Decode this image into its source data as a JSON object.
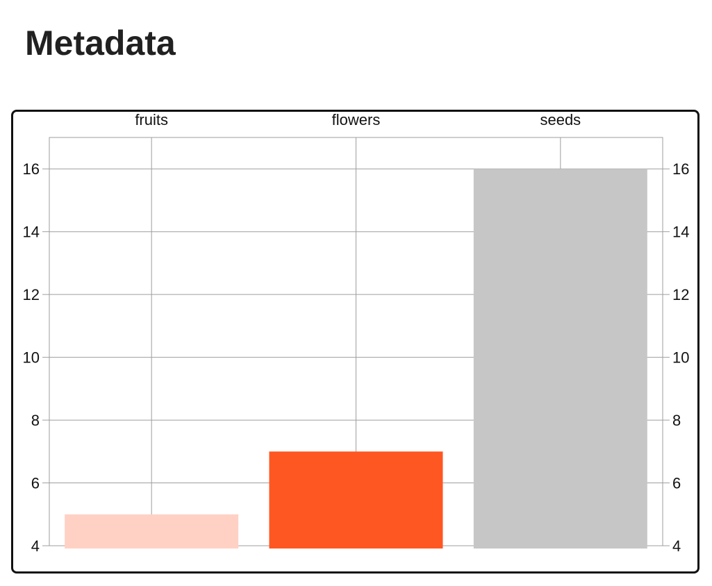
{
  "page": {
    "title": "Metadata"
  },
  "chart_data": {
    "type": "bar",
    "categories": [
      "fruits",
      "flowers",
      "seeds"
    ],
    "series": [
      {
        "values": [
          5,
          7,
          16
        ],
        "colors": [
          "#ffd1c5",
          "#ff5722",
          "#c6c6c6"
        ]
      }
    ],
    "ylim": [
      4,
      17
    ],
    "yticks": [
      4,
      6,
      8,
      10,
      12,
      14,
      16
    ],
    "y_axis_left": true,
    "y_axis_right": true,
    "category_labels_position": "top",
    "grid": true,
    "legend": "none",
    "xlabel": "",
    "ylabel": ""
  }
}
